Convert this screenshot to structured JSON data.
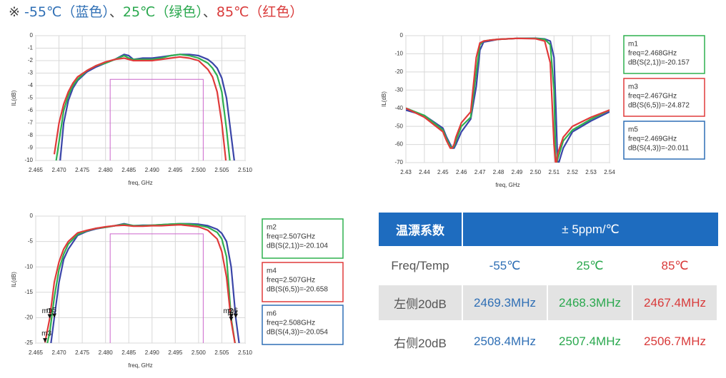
{
  "header": {
    "parts": [
      {
        "text": "※ ",
        "color": "#444444"
      },
      {
        "text": "-55℃（蓝色）",
        "color": "#2f6fb5"
      },
      {
        "text": "、",
        "color": "#444444"
      },
      {
        "text": "25℃（绿色）",
        "color": "#2aa84e"
      },
      {
        "text": "、",
        "color": "#444444"
      },
      {
        "text": "85℃（红色）",
        "color": "#d93a3a"
      }
    ]
  },
  "chart_data": [
    {
      "type": "line",
      "ylabel": "IL(dB)",
      "xlabel": "freq, GHz",
      "grid": true,
      "xlim": [
        2.465,
        2.51
      ],
      "xticks": [
        2.465,
        {
          "value": 2.47,
          "label": "2.470"
        },
        2.475,
        {
          "value": 2.48,
          "label": "2.480"
        },
        2.485,
        {
          "value": 2.49,
          "label": "2.490"
        },
        2.495,
        {
          "value": 2.5,
          "label": "2.500"
        },
        2.505,
        {
          "value": 2.51,
          "label": "2.510"
        }
      ],
      "ylim": [
        -10,
        0
      ],
      "yticks": [
        0,
        -1,
        -2,
        -3,
        -4,
        -5,
        -6,
        -7,
        -8,
        -9,
        -10
      ],
      "mask": {
        "x": [
          2.481,
          2.501
        ],
        "y": -3.5,
        "color": "#cc66cc"
      },
      "x": [
        2.469,
        2.47,
        2.471,
        2.472,
        2.473,
        2.474,
        2.476,
        2.478,
        2.48,
        2.482,
        2.484,
        2.485,
        2.486,
        2.488,
        2.49,
        2.492,
        2.494,
        2.496,
        2.498,
        2.5,
        2.502,
        2.503,
        2.504,
        2.505,
        2.506,
        2.507,
        2.508
      ],
      "series": [
        {
          "color": "#3a45a8",
          "values": [
            null,
            -11,
            -7,
            -5.2,
            -4.2,
            -3.6,
            -2.9,
            -2.5,
            -2.2,
            -1.9,
            -1.5,
            -1.6,
            -1.9,
            -1.8,
            -1.8,
            -1.7,
            -1.6,
            -1.5,
            -1.5,
            -1.6,
            -1.9,
            -2.2,
            -2.6,
            -3.4,
            -5,
            -8,
            -11
          ]
        },
        {
          "color": "#2fb04f",
          "values": [
            -11,
            -8.5,
            -6,
            -4.8,
            -4,
            -3.5,
            -2.8,
            -2.4,
            -2.2,
            -1.9,
            -1.6,
            -1.8,
            -1.9,
            -1.9,
            -1.9,
            -1.8,
            -1.6,
            -1.5,
            -1.6,
            -1.8,
            -2.2,
            -2.6,
            -3.2,
            -4.5,
            -7.5,
            -11,
            null
          ]
        },
        {
          "color": "#e03a3a",
          "values": [
            -9.5,
            -7,
            -5.5,
            -4.5,
            -3.8,
            -3.3,
            -2.8,
            -2.4,
            -2.1,
            -1.9,
            -1.8,
            -1.9,
            -2,
            -2,
            -2,
            -1.9,
            -1.8,
            -1.7,
            -1.8,
            -2,
            -2.7,
            -3.3,
            -4.5,
            -7,
            -10.5,
            null,
            null
          ]
        }
      ]
    },
    {
      "type": "line",
      "ylabel": "IL(dB)",
      "xlabel": "freq, GHz",
      "grid": true,
      "xlim": [
        2.43,
        2.54
      ],
      "xticks": [
        2.43,
        2.44,
        2.45,
        2.46,
        2.47,
        2.48,
        2.49,
        {
          "value": 2.5,
          "label": "2.50"
        },
        2.51,
        2.52,
        2.53,
        2.54
      ],
      "ylim": [
        -70,
        0
      ],
      "yticks": [
        0,
        -10,
        -20,
        -30,
        -40,
        -50,
        -60,
        -70
      ],
      "x": [
        2.43,
        2.44,
        2.45,
        2.452,
        2.454,
        2.455,
        2.456,
        2.457,
        2.46,
        2.465,
        2.468,
        2.47,
        2.472,
        2.475,
        2.48,
        2.49,
        2.5,
        2.505,
        2.508,
        2.51,
        2.511,
        2.512,
        2.515,
        2.52,
        2.53,
        2.54
      ],
      "series": [
        {
          "color": "#3a45a8",
          "values": [
            -41,
            -44,
            -51,
            -56,
            -60,
            -62,
            -62,
            -60,
            -53,
            -46,
            -28,
            -8,
            -3.5,
            -3,
            -2,
            -1.5,
            -1.4,
            -1.8,
            -3,
            -12,
            -40,
            -72,
            -62,
            -53,
            -47,
            -42
          ]
        },
        {
          "color": "#2fb04f",
          "values": [
            -40,
            -44,
            -52,
            -57,
            -61,
            -62,
            -61,
            -58,
            -50,
            -45,
            -20,
            -5,
            -3,
            -2.5,
            -2,
            -1.5,
            -1.5,
            -2,
            -5,
            -30,
            -72,
            -68,
            -58,
            -52,
            -46,
            -41
          ]
        },
        {
          "color": "#e03a3a",
          "values": [
            -40,
            -45,
            -53,
            -58,
            -62,
            -62,
            -60,
            -56,
            -48,
            -42,
            -12,
            -4,
            -3,
            -2.5,
            -2,
            -1.5,
            -1.7,
            -3,
            -15,
            -60,
            -72,
            -65,
            -56,
            -50,
            -45,
            -41
          ]
        }
      ],
      "markers": [
        {
          "name": "m1",
          "x": 2.468,
          "x_label": "freq=2.468GHz",
          "y": -20.157,
          "y_label": "dB(S(2,1))=-20.157",
          "color": "#2fb04f"
        },
        {
          "name": "m3",
          "x": 2.467,
          "x_label": "freq=2.467GHz",
          "y": -24.872,
          "y_label": "dB(S(6,5))=-24.872",
          "color": "#e03a3a"
        },
        {
          "name": "m5",
          "x": 2.469,
          "x_label": "freq=2.469GHz",
          "y": -20.011,
          "y_label": "dB(S(4,3))=-20.011",
          "color": "#2f6fb5"
        }
      ]
    },
    {
      "type": "line",
      "ylabel": "IL(dB)",
      "xlabel": "freq, GHz",
      "grid": true,
      "xlim": [
        2.465,
        2.51
      ],
      "xticks": [
        2.465,
        {
          "value": 2.47,
          "label": "2.470"
        },
        2.475,
        {
          "value": 2.48,
          "label": "2.480"
        },
        2.485,
        {
          "value": 2.49,
          "label": "2.490"
        },
        2.495,
        {
          "value": 2.5,
          "label": "2.500"
        },
        2.505,
        {
          "value": 2.51,
          "label": "2.510"
        }
      ],
      "ylim": [
        -25,
        0
      ],
      "yticks": [
        0,
        -5,
        -10,
        -15,
        -20,
        -25
      ],
      "mask": {
        "x": [
          2.481,
          2.501
        ],
        "y": -3.5,
        "color": "#cc66cc"
      },
      "x": [
        2.467,
        2.468,
        2.469,
        2.47,
        2.471,
        2.472,
        2.474,
        2.476,
        2.478,
        2.48,
        2.482,
        2.484,
        2.486,
        2.488,
        2.49,
        2.492,
        2.494,
        2.496,
        2.498,
        2.5,
        2.502,
        2.504,
        2.505,
        2.506,
        2.507,
        2.508,
        2.509
      ],
      "series": [
        {
          "color": "#3a45a8",
          "values": [
            null,
            -27,
            -20,
            -13,
            -8.5,
            -6.5,
            -3.8,
            -3,
            -2.5,
            -2.2,
            -1.9,
            -1.5,
            -1.9,
            -1.8,
            -1.8,
            -1.7,
            -1.6,
            -1.5,
            -1.5,
            -1.6,
            -1.9,
            -2.6,
            -3.4,
            -5,
            -10,
            -20.1,
            -27
          ]
        },
        {
          "color": "#2fb04f",
          "values": [
            -27,
            -23,
            -16,
            -10.5,
            -7.5,
            -5.5,
            -3.6,
            -2.9,
            -2.4,
            -2.2,
            -1.9,
            -1.6,
            -1.9,
            -1.9,
            -1.8,
            -1.7,
            -1.6,
            -1.5,
            -1.6,
            -1.8,
            -2.2,
            -3.2,
            -4.5,
            -8,
            -20.1,
            -26,
            null
          ]
        },
        {
          "color": "#e03a3a",
          "values": [
            -24.9,
            -20.2,
            -13,
            -9,
            -6.5,
            -5,
            -3.3,
            -2.8,
            -2.4,
            -2.1,
            -1.9,
            -1.8,
            -2,
            -2,
            -1.9,
            -1.9,
            -1.8,
            -1.7,
            -1.9,
            -2.1,
            -2.8,
            -4.5,
            -7,
            -12,
            -20.7,
            -26,
            null
          ]
        }
      ],
      "markers": [
        {
          "name": "m2",
          "x": 2.507,
          "x_label": "freq=2.507GHz",
          "y": -20.104,
          "y_label": "dB(S(2,1))=-20.104",
          "color": "#2fb04f"
        },
        {
          "name": "m4",
          "x": 2.507,
          "x_label": "freq=2.507GHz",
          "y": -20.658,
          "y_label": "dB(S(6,5))=-20.658",
          "color": "#e03a3a"
        },
        {
          "name": "m6",
          "x": 2.508,
          "x_label": "freq=2.508GHz",
          "y": -20.054,
          "y_label": "dB(S(4,3))=-20.054",
          "color": "#2f6fb5"
        }
      ]
    }
  ],
  "table": {
    "header": [
      "温漂系数",
      "± 5ppm/℃"
    ],
    "rows": [
      [
        "Freq/Temp",
        "-55℃",
        "25℃",
        "85℃"
      ],
      [
        "左侧20dB",
        "2469.3MHz",
        "2468.3MHz",
        "2467.4MHz"
      ],
      [
        "右侧20dB",
        "2508.4MHz",
        "2507.4MHz",
        "2506.7MHz"
      ]
    ],
    "column_colors": [
      "#555555",
      "#2f6fb5",
      "#2aa84e",
      "#d93a3a"
    ]
  }
}
